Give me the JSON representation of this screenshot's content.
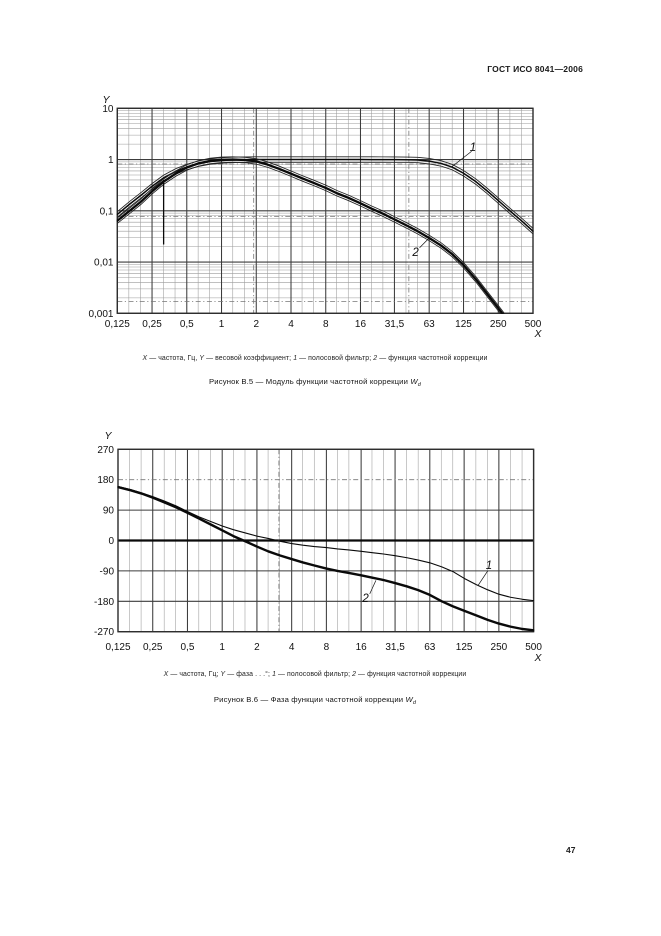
{
  "page": {
    "header": "ГОСТ ИСО 8041—2006",
    "number": "47"
  },
  "captions": {
    "fig5_legend": [
      {
        "text": "X",
        "italic": true
      },
      {
        "text": " — частота, Гц, "
      },
      {
        "text": "Y",
        "italic": true
      },
      {
        "text": " — весовой коэффициент; "
      },
      {
        "text": "1",
        "italic": true
      },
      {
        "text": " — полосовой фильтр; "
      },
      {
        "text": "2",
        "italic": true
      },
      {
        "text": " — функция частотной коррекции"
      }
    ],
    "fig5_title": [
      {
        "text": "Рисунок В.5 — Модуль функции частотной коррекции "
      },
      {
        "text": "W",
        "italic": true
      },
      {
        "text": "d",
        "italic": true,
        "sub": true
      }
    ],
    "fig6_legend": [
      {
        "text": "X",
        "italic": true
      },
      {
        "text": " — частота, Гц; "
      },
      {
        "text": "Y",
        "italic": true
      },
      {
        "text": " — фаза . . .°; "
      },
      {
        "text": "1",
        "italic": true
      },
      {
        "text": " — полосовой фильтр; "
      },
      {
        "text": "2",
        "italic": true
      },
      {
        "text": " — функция частотной коррекции"
      }
    ],
    "fig6_title": [
      {
        "text": "Рисунок В.6 — Фаза функции частотной коррекции "
      },
      {
        "text": "W",
        "italic": true
      },
      {
        "text": "d",
        "italic": true,
        "sub": true
      }
    ]
  },
  "chart_data": [
    {
      "id": "b5",
      "type": "line",
      "title": "Модуль функции частотной коррекции Wd",
      "x": {
        "label": "X",
        "scale": "log",
        "min": 0.125,
        "max": 500,
        "tick_values": [
          0.125,
          0.25,
          0.5,
          1,
          2,
          4,
          8,
          16,
          31.5,
          63,
          125,
          250,
          500
        ],
        "tick_labels": [
          "0,125",
          "0,25",
          "0,5",
          "1",
          "2",
          "4",
          "8",
          "16",
          "31,5",
          "63",
          "125",
          "250",
          "500"
        ],
        "minor": "third-octave"
      },
      "y": {
        "label": "Y",
        "scale": "log",
        "min": 0.001,
        "max": 10,
        "tick_values": [
          10,
          1,
          0.1,
          0.01,
          0.001
        ],
        "tick_labels": [
          "10",
          "1",
          "0,1",
          "0,01",
          "0,001"
        ]
      },
      "guides": {
        "h_dashdot": [
          0.82,
          0.077,
          0.0017
        ],
        "v_dashdot": [
          1.9,
          42
        ]
      },
      "series": [
        {
          "name": "1",
          "legend": "полосовой фильтр",
          "width": 1.5,
          "tolerance": 1.13,
          "points": [
            [
              0.125,
              0.085
            ],
            [
              0.16,
              0.135
            ],
            [
              0.2,
              0.2
            ],
            [
              0.25,
              0.3
            ],
            [
              0.315,
              0.44
            ],
            [
              0.4,
              0.585
            ],
            [
              0.5,
              0.715
            ],
            [
              0.63,
              0.83
            ],
            [
              0.8,
              0.915
            ],
            [
              1,
              0.96
            ],
            [
              1.25,
              0.985
            ],
            [
              1.6,
              0.995
            ],
            [
              2,
              1.0
            ],
            [
              3.15,
              1.0
            ],
            [
              5,
              1.0
            ],
            [
              8,
              1.0
            ],
            [
              12.5,
              1.0
            ],
            [
              16,
              1.0
            ],
            [
              20,
              0.999
            ],
            [
              25,
              0.998
            ],
            [
              31.5,
              0.995
            ],
            [
              40,
              0.99
            ],
            [
              50,
              0.98
            ],
            [
              63,
              0.93
            ],
            [
              80,
              0.84
            ],
            [
              100,
              0.71
            ],
            [
              125,
              0.54
            ],
            [
              160,
              0.37
            ],
            [
              200,
              0.245
            ],
            [
              250,
              0.158
            ],
            [
              315,
              0.1
            ],
            [
              400,
              0.063
            ],
            [
              500,
              0.04
            ]
          ]
        },
        {
          "name": "2",
          "legend": "функция частотной коррекции",
          "width": 2.3,
          "tolerance": 1.13,
          "points": [
            [
              0.125,
              0.064
            ],
            [
              0.16,
              0.1
            ],
            [
              0.2,
              0.15
            ],
            [
              0.25,
              0.24
            ],
            [
              0.315,
              0.37
            ],
            [
              0.4,
              0.53
            ],
            [
              0.5,
              0.7
            ],
            [
              0.63,
              0.84
            ],
            [
              0.8,
              0.94
            ],
            [
              1,
              0.99
            ],
            [
              1.25,
              1.0
            ],
            [
              1.6,
              0.98
            ],
            [
              2,
              0.92
            ],
            [
              2.5,
              0.8
            ],
            [
              3.15,
              0.66
            ],
            [
              4,
              0.53
            ],
            [
              5,
              0.43
            ],
            [
              6.3,
              0.35
            ],
            [
              8,
              0.28
            ],
            [
              10,
              0.22
            ],
            [
              12.5,
              0.18
            ],
            [
              16,
              0.14
            ],
            [
              20,
              0.11
            ],
            [
              25,
              0.088
            ],
            [
              31.5,
              0.068
            ],
            [
              40,
              0.052
            ],
            [
              50,
              0.04
            ],
            [
              63,
              0.0295
            ],
            [
              80,
              0.021
            ],
            [
              100,
              0.0142
            ],
            [
              125,
              0.0087
            ],
            [
              160,
              0.0046
            ],
            [
              200,
              0.0024
            ],
            [
              250,
              0.00126
            ],
            [
              315,
              0.00064
            ],
            [
              400,
              0.00031
            ]
          ]
        }
      ],
      "extra_lines": [
        [
          0.315,
          0.4,
          0.315,
          0.022
        ]
      ],
      "annotations": [
        {
          "text": "1",
          "x": 151,
          "y": 1.71,
          "leader": [
            147,
            1.45,
            97,
            0.7
          ]
        },
        {
          "text": "2",
          "x": 48,
          "y": 0.0154,
          "leader": [
            52,
            0.019,
            63,
            0.0295
          ]
        }
      ]
    },
    {
      "id": "b6",
      "type": "line",
      "title": "Фаза функции частотной коррекции Wd",
      "x": {
        "label": "X",
        "scale": "log",
        "min": 0.125,
        "max": 500,
        "tick_values": [
          0.125,
          0.25,
          0.5,
          1,
          2,
          4,
          8,
          16,
          31.5,
          63,
          125,
          250,
          500
        ],
        "tick_labels": [
          "0,125",
          "0,25",
          "0,5",
          "1",
          "2",
          "4",
          "8",
          "16",
          "31,5",
          "63",
          "125",
          "250",
          "500"
        ],
        "minor": "third-octave"
      },
      "y": {
        "label": "Y",
        "scale": "linear",
        "min": -270,
        "max": 270,
        "tick_values": [
          270,
          180,
          90,
          0,
          -90,
          -180,
          -270
        ],
        "tick_labels": [
          "270",
          "180",
          "90",
          "0",
          "-90",
          "-180",
          "-270"
        ],
        "zero_line_thick": true
      },
      "guides": {
        "h_dashdot": [
          180
        ],
        "v_dashdot": [
          3.1
        ]
      },
      "series": [
        {
          "name": "1",
          "legend": "полосовой фильтр",
          "width": 1.1,
          "tolerance": null,
          "points": [
            [
              0.125,
              160
            ],
            [
              0.16,
              151
            ],
            [
              0.2,
              141
            ],
            [
              0.25,
              130
            ],
            [
              0.315,
              117
            ],
            [
              0.4,
              102
            ],
            [
              0.5,
              86
            ],
            [
              0.63,
              70
            ],
            [
              0.8,
              56
            ],
            [
              1,
              43
            ],
            [
              1.25,
              32
            ],
            [
              1.6,
              22
            ],
            [
              2,
              13
            ],
            [
              2.5,
              6
            ],
            [
              3.15,
              -2
            ],
            [
              4,
              -9
            ],
            [
              5,
              -14
            ],
            [
              6.3,
              -18
            ],
            [
              8,
              -21
            ],
            [
              10,
              -25
            ],
            [
              12.5,
              -28
            ],
            [
              16,
              -32
            ],
            [
              20,
              -36
            ],
            [
              25,
              -40
            ],
            [
              31.5,
              -45
            ],
            [
              40,
              -51
            ],
            [
              50,
              -58
            ],
            [
              63,
              -66
            ],
            [
              80,
              -78
            ],
            [
              100,
              -92
            ],
            [
              125,
              -112
            ],
            [
              160,
              -131
            ],
            [
              200,
              -146
            ],
            [
              250,
              -159
            ],
            [
              315,
              -168
            ],
            [
              400,
              -174
            ],
            [
              500,
              -178
            ]
          ]
        },
        {
          "name": "2",
          "legend": "функция частотной коррекции",
          "width": 2.4,
          "tolerance": null,
          "points": [
            [
              0.125,
              158
            ],
            [
              0.16,
              149
            ],
            [
              0.2,
              139
            ],
            [
              0.25,
              127
            ],
            [
              0.315,
              113
            ],
            [
              0.4,
              98
            ],
            [
              0.5,
              82
            ],
            [
              0.63,
              65
            ],
            [
              0.8,
              47
            ],
            [
              1,
              30
            ],
            [
              1.25,
              13
            ],
            [
              1.6,
              -3
            ],
            [
              2,
              -18
            ],
            [
              2.5,
              -32
            ],
            [
              3.15,
              -44
            ],
            [
              4,
              -55
            ],
            [
              5,
              -65
            ],
            [
              6.3,
              -74
            ],
            [
              8,
              -83
            ],
            [
              10,
              -90
            ],
            [
              12.5,
              -96
            ],
            [
              16,
              -103
            ],
            [
              20,
              -110
            ],
            [
              25,
              -117
            ],
            [
              31.5,
              -126
            ],
            [
              40,
              -136
            ],
            [
              50,
              -147
            ],
            [
              63,
              -161
            ],
            [
              80,
              -180
            ],
            [
              100,
              -195
            ],
            [
              125,
              -208
            ],
            [
              160,
              -222
            ],
            [
              200,
              -235
            ],
            [
              250,
              -246
            ],
            [
              315,
              -255
            ],
            [
              400,
              -262
            ],
            [
              500,
              -266
            ]
          ]
        }
      ],
      "extra_lines": [],
      "annotations": [
        {
          "text": "1",
          "x": 205,
          "y": -74,
          "leader": [
            200,
            -90,
            165,
            -133
          ]
        },
        {
          "text": "2",
          "x": 17.5,
          "y": -172,
          "leader": [
            19,
            -158,
            21.5,
            -118
          ]
        }
      ]
    }
  ]
}
